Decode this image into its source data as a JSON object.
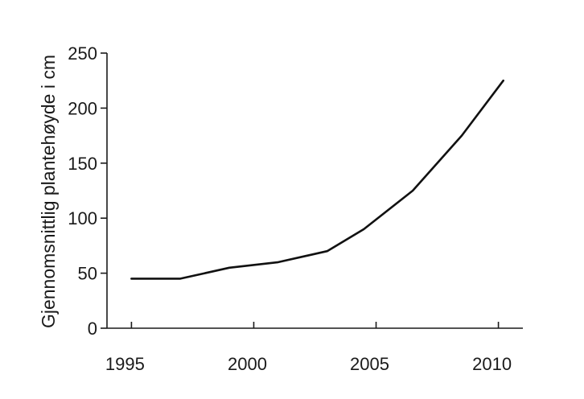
{
  "chart_data": {
    "type": "line",
    "title": "",
    "xlabel": "",
    "ylabel": "Gjennomsnittlig plantehøyde i cm",
    "xlim": [
      1994,
      2011
    ],
    "ylim": [
      0,
      250
    ],
    "x_ticks": [
      1995,
      2000,
      2005,
      2010
    ],
    "y_ticks": [
      0,
      50,
      100,
      150,
      200,
      250
    ],
    "grid": false,
    "legend": "none",
    "series": [
      {
        "x": [
          1995,
          1997,
          1999,
          2001,
          2003,
          2004.5,
          2006.5,
          2008.5,
          2010.2
        ],
        "values": [
          45,
          45,
          55,
          60,
          70,
          90,
          125,
          175,
          225
        ],
        "color": "#111111"
      }
    ]
  }
}
